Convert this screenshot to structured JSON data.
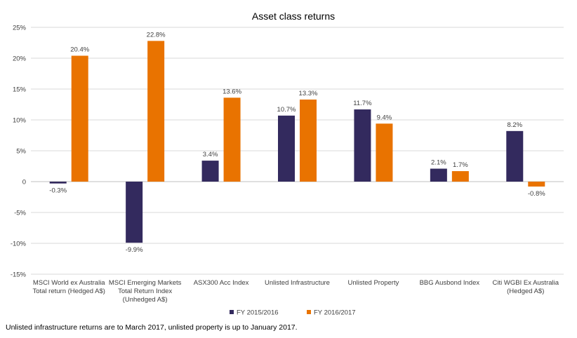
{
  "chart_data": {
    "type": "bar",
    "title": "Asset class returns",
    "categories": [
      [
        "MSCI World ex Australia",
        "Total return (Hedged A$)"
      ],
      [
        "MSCI Emerging Markets",
        "Total Return Index",
        "(Unhedged A$)"
      ],
      [
        "ASX300 Acc Index"
      ],
      [
        "Unlisted Infrastructure"
      ],
      [
        "Unlisted Property"
      ],
      [
        "BBG Ausbond Index"
      ],
      [
        "Citi WGBI Ex Australia",
        "(Hedged A$)"
      ]
    ],
    "series": [
      {
        "name": "FY 2015/2016",
        "color": "#332a5e",
        "values": [
          -0.3,
          -9.9,
          3.4,
          10.7,
          11.7,
          2.1,
          8.2
        ],
        "labels": [
          "-0.3%",
          "-9.9%",
          "3.4%",
          "10.7%",
          "11.7%",
          "2.1%",
          "8.2%"
        ]
      },
      {
        "name": "FY 2016/2017",
        "color": "#e97300",
        "values": [
          20.4,
          22.8,
          13.6,
          13.3,
          9.4,
          1.7,
          -0.8
        ],
        "labels": [
          "20.4%",
          "22.8%",
          "13.6%",
          "13.3%",
          "9.4%",
          "1.7%",
          "-0.8%"
        ]
      }
    ],
    "yticks": [
      25,
      20,
      15,
      10,
      5,
      0,
      -5,
      -10,
      -15
    ],
    "ytick_labels": [
      "25%",
      "20%",
      "15%",
      "10%",
      "5%",
      "0",
      "-5%",
      "-10%",
      "-15%"
    ],
    "ylim": [
      -15,
      25
    ],
    "grid": true,
    "legend_position": "bottom"
  },
  "footnote": "Unlisted infrastructure returns are to March 2017, unlisted property is up to January 2017."
}
